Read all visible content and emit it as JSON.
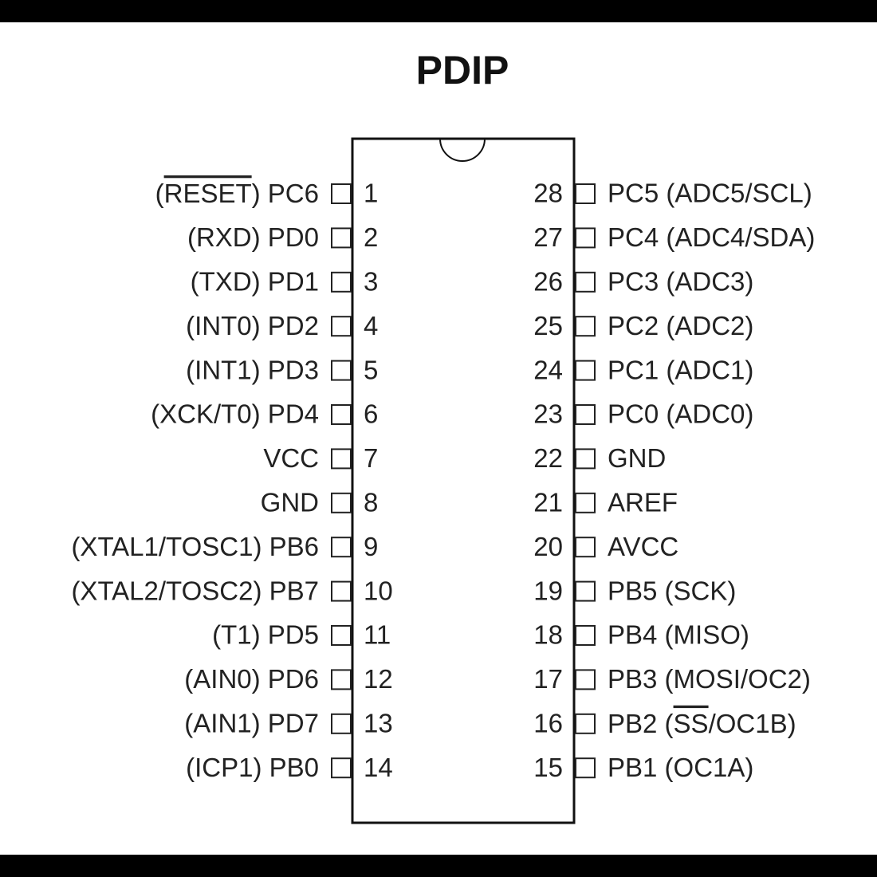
{
  "title": "PDIP",
  "left_pins": [
    {
      "number": "1",
      "label": [
        "(",
        "RESET",
        ") PC6"
      ]
    },
    {
      "number": "2",
      "label": "(RXD) PD0"
    },
    {
      "number": "3",
      "label": "(TXD) PD1"
    },
    {
      "number": "4",
      "label": "(INT0) PD2"
    },
    {
      "number": "5",
      "label": "(INT1) PD3"
    },
    {
      "number": "6",
      "label": "(XCK/T0) PD4"
    },
    {
      "number": "7",
      "label": "VCC"
    },
    {
      "number": "8",
      "label": "GND"
    },
    {
      "number": "9",
      "label": "(XTAL1/TOSC1) PB6"
    },
    {
      "number": "10",
      "label": "(XTAL2/TOSC2) PB7"
    },
    {
      "number": "11",
      "label": "(T1) PD5"
    },
    {
      "number": "12",
      "label": "(AIN0) PD6"
    },
    {
      "number": "13",
      "label": "(AIN1) PD7"
    },
    {
      "number": "14",
      "label": "(ICP1) PB0"
    }
  ],
  "right_pins": [
    {
      "number": "28",
      "label": "PC5 (ADC5/SCL)"
    },
    {
      "number": "27",
      "label": "PC4 (ADC4/SDA)"
    },
    {
      "number": "26",
      "label": "PC3 (ADC3)"
    },
    {
      "number": "25",
      "label": "PC2 (ADC2)"
    },
    {
      "number": "24",
      "label": "PC1 (ADC1)"
    },
    {
      "number": "23",
      "label": "PC0 (ADC0)"
    },
    {
      "number": "22",
      "label": "GND"
    },
    {
      "number": "21",
      "label": "AREF"
    },
    {
      "number": "20",
      "label": "AVCC"
    },
    {
      "number": "19",
      "label": "PB5 (SCK)"
    },
    {
      "number": "18",
      "label": "PB4 (MISO)"
    },
    {
      "number": "17",
      "label": "PB3 (MOSI/OC2)"
    },
    {
      "number": "16",
      "label": [
        "PB2 (",
        "SS",
        "/OC1B)"
      ]
    },
    {
      "number": "15",
      "label": "PB1 (OC1A)"
    }
  ]
}
